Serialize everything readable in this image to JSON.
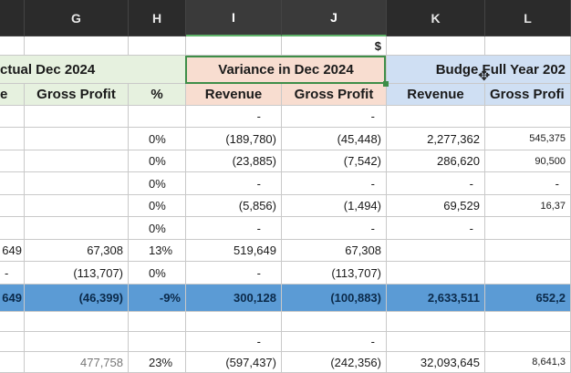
{
  "column_headers": [
    "G",
    "H",
    "I",
    "J",
    "K",
    "L"
  ],
  "currency_symbol": "$",
  "section_titles": {
    "actual": "ctual Dec 2024",
    "variance": "Variance in Dec 2024",
    "budget": "Budge Full Year 202"
  },
  "sub_headers": {
    "e": "e",
    "gross_profit_g": "Gross Profit",
    "pct": "%",
    "revenue_i": "Revenue",
    "gross_profit_j": "Gross Profit",
    "revenue_k": "Revenue",
    "gross_profit_l": "Gross Profi"
  },
  "rows": [
    {
      "f": "",
      "g": "",
      "h": "",
      "i": "-",
      "j": "-",
      "k": "",
      "l": ""
    },
    {
      "f": "",
      "g": "",
      "h": "0%",
      "i": "(189,780)",
      "j": "(45,448)",
      "k": "2,277,362",
      "l": "545,375"
    },
    {
      "f": "",
      "g": "",
      "h": "0%",
      "i": "(23,885)",
      "j": "(7,542)",
      "k": "286,620",
      "l": "90,500"
    },
    {
      "f": "",
      "g": "",
      "h": "0%",
      "i": "-",
      "j": "-",
      "k": "-",
      "l": "-"
    },
    {
      "f": "",
      "g": "",
      "h": "0%",
      "i": "(5,856)",
      "j": "(1,494)",
      "k": "69,529",
      "l": "16,37"
    },
    {
      "f": "",
      "g": "",
      "h": "0%",
      "i": "-",
      "j": "-",
      "k": "-",
      "l": ""
    },
    {
      "f": "649",
      "g": "67,308",
      "h": "13%",
      "i": "519,649",
      "j": "67,308",
      "k": "",
      "l": ""
    },
    {
      "f": "-",
      "g": "(113,707)",
      "h": "0%",
      "i": "-",
      "j": "(113,707)",
      "k": "",
      "l": ""
    }
  ],
  "total_row": {
    "f": "649",
    "g": "(46,399)",
    "h": "-9%",
    "i": "300,128",
    "j": "(100,883)",
    "k": "2,633,511",
    "l": "652,2"
  },
  "lower_rows": [
    {
      "f": "",
      "g": "",
      "h": "",
      "i": "",
      "j": "",
      "k": "",
      "l": ""
    },
    {
      "f": "",
      "g": "",
      "h": "",
      "i": "-",
      "j": "-",
      "k": "",
      "l": ""
    },
    {
      "f": "",
      "g": "477,758",
      "h": "23%",
      "i": "(597,437)",
      "j": "(242,356)",
      "k": "32,093,645",
      "l": "8,641,3"
    }
  ]
}
